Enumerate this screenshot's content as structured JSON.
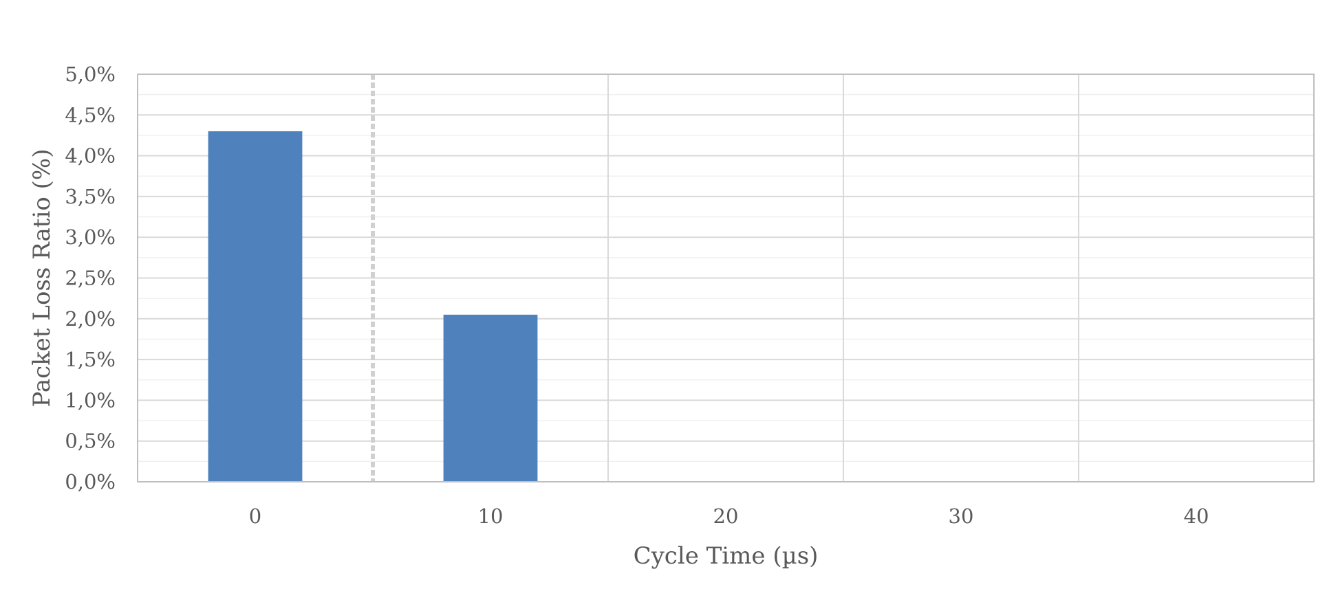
{
  "chart_data": {
    "type": "bar",
    "title": "",
    "xlabel": "Cycle Time (µs)",
    "ylabel": "Packet Loss Ratio (%)",
    "categories": [
      "0",
      "10",
      "20",
      "30",
      "40"
    ],
    "values": [
      4.3,
      2.05,
      0.0,
      0.0,
      0.0
    ],
    "value_unit": "percent",
    "ylim": [
      0,
      5.0
    ],
    "y_major_step": 0.5,
    "y_minor_step": 0.25,
    "y_tick_labels": [
      "0,0%",
      "0,5%",
      "1,0%",
      "1,5%",
      "2,0%",
      "2,5%",
      "3,0%",
      "3,5%",
      "4,0%",
      "4,5%",
      "5,0%"
    ],
    "grid": true,
    "category_separators": "vertical lines between categories",
    "threshold_line": {
      "style": "dashed",
      "position": "between categories 0 and 10"
    },
    "legend": "none",
    "colors": {
      "bar": "#4f81bd",
      "axis_text": "#595959",
      "major_grid": "#d9d9d9",
      "minor_grid": "#f0f0f0",
      "plot_border": "#bfbfbf",
      "threshold": "#d0d0d0"
    }
  }
}
